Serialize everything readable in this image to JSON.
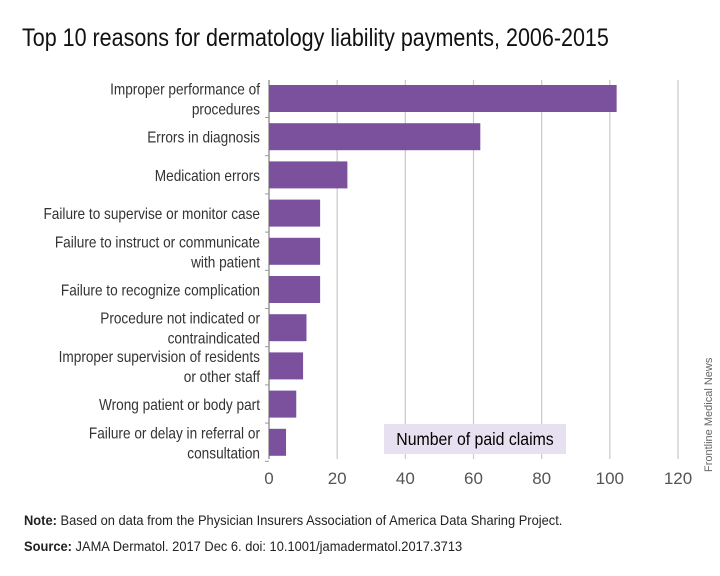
{
  "title": "Top 10 reasons for dermatology liability payments, 2006-2015",
  "chart_data": {
    "type": "bar",
    "orientation": "horizontal",
    "title": "Top 10 reasons for dermatology liability payments, 2006-2015",
    "categories": [
      [
        "Improper performance of",
        "procedures"
      ],
      [
        "Errors in diagnosis"
      ],
      [
        "Medication errors"
      ],
      [
        "Failure to supervise or monitor case"
      ],
      [
        "Failure to instruct or communicate",
        "with patient"
      ],
      [
        "Failure to recognize complication"
      ],
      [
        "Procedure not indicated or",
        "contraindicated"
      ],
      [
        "Improper supervision of residents",
        "or other staff"
      ],
      [
        "Wrong patient or body part"
      ],
      [
        "Failure or delay in referral or",
        "consultation"
      ]
    ],
    "values": [
      102,
      62,
      23,
      15,
      15,
      15,
      11,
      10,
      8,
      5
    ],
    "xlabel": "Number of paid claims",
    "xlim": [
      0,
      120
    ],
    "xticks": [
      "0",
      "20",
      "40",
      "60",
      "80",
      "100",
      "120"
    ],
    "grid": true,
    "bar_color": "#7b519d",
    "label_bg": "#e7e0f0"
  },
  "note_label": "Note:",
  "note_text": " Based on data from the Physician Insurers Association of America Data Sharing Project.",
  "source_label": "Source:",
  "source_text": " JAMA Dermatol. 2017 Dec 6. doi: 10.1001/jamadermatol.2017.3713",
  "credit": "Frontline Medical News"
}
